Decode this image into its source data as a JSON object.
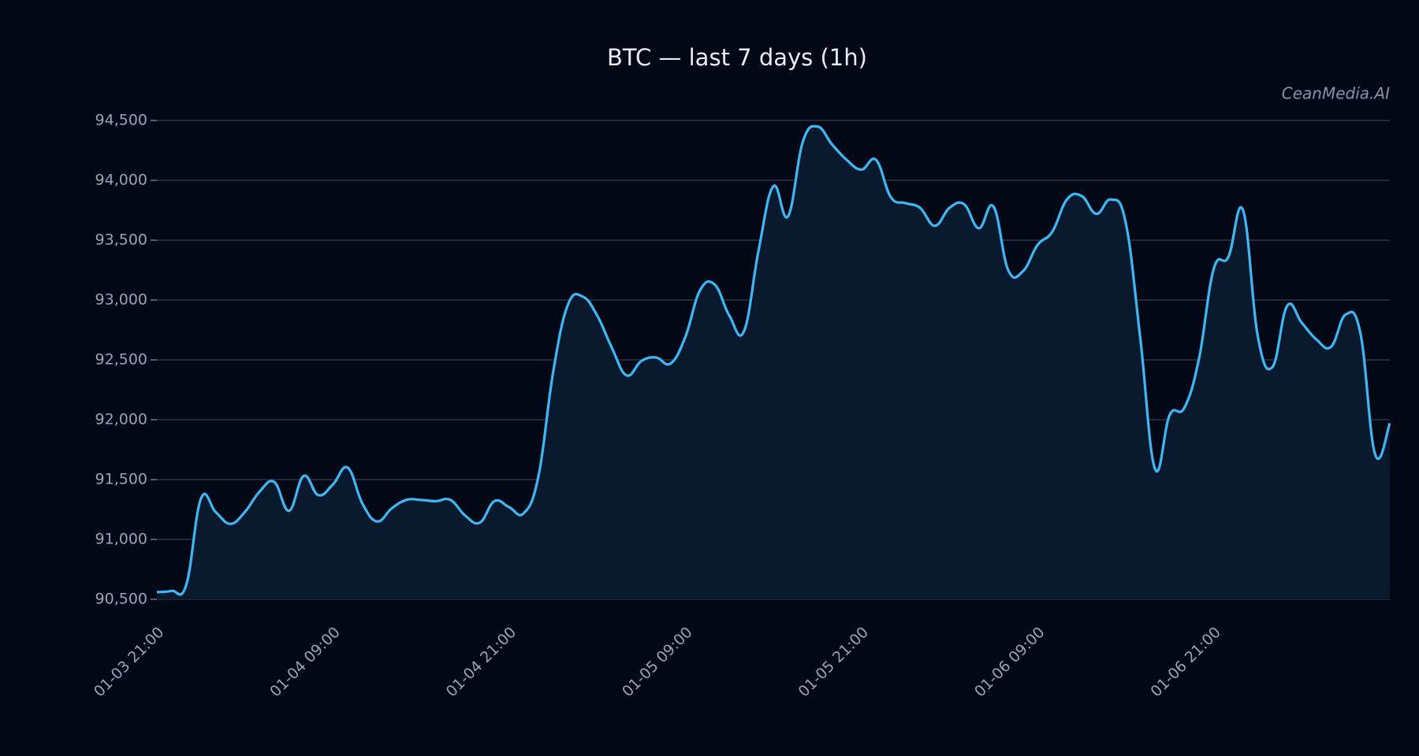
{
  "chart_data": {
    "type": "line",
    "title": "BTC — last 7 days (1h)",
    "watermark": "CeanMedia.AI",
    "categories": [
      "01-03 21:00",
      null,
      null,
      null,
      null,
      null,
      null,
      null,
      null,
      null,
      null,
      null,
      "01-04 09:00",
      null,
      null,
      null,
      null,
      null,
      null,
      null,
      null,
      null,
      null,
      null,
      "01-04 21:00",
      null,
      null,
      null,
      null,
      null,
      null,
      null,
      null,
      null,
      null,
      null,
      "01-05 09:00",
      null,
      null,
      null,
      null,
      null,
      null,
      null,
      null,
      null,
      null,
      null,
      "01-05 21:00",
      null,
      null,
      null,
      null,
      null,
      null,
      null,
      null,
      null,
      null,
      null,
      "01-06 09:00",
      null,
      null,
      null,
      null,
      null,
      null,
      null,
      null,
      null,
      null,
      null,
      "01-06 21:00",
      null,
      null,
      null,
      null,
      null,
      null,
      null,
      null,
      null,
      null,
      null,
      null
    ],
    "series": [
      {
        "name": "BTC",
        "color": "#3db8f5",
        "values": [
          90560,
          90570,
          90620,
          91340,
          91230,
          91130,
          91230,
          91400,
          91480,
          91240,
          91530,
          91370,
          91460,
          91600,
          91300,
          91150,
          91260,
          91330,
          91330,
          91320,
          91330,
          91200,
          91140,
          91320,
          91270,
          91220,
          91530,
          92400,
          92960,
          93030,
          92870,
          92600,
          92370,
          92490,
          92520,
          92470,
          92690,
          93080,
          93130,
          92870,
          92740,
          93420,
          93950,
          93700,
          94320,
          94450,
          94300,
          94170,
          94090,
          94170,
          93860,
          93810,
          93770,
          93620,
          93770,
          93800,
          93600,
          93780,
          93250,
          93240,
          93460,
          93570,
          93840,
          93870,
          93720,
          93840,
          93650,
          92680,
          91590,
          92040,
          92100,
          92510,
          93260,
          93360,
          93750,
          92700,
          92440,
          92950,
          92810,
          92670,
          92610,
          92880,
          92720,
          91710,
          91970
        ]
      }
    ],
    "area_color": "#0a1a2e",
    "ylim": [
      90500,
      94500
    ],
    "yticks": [
      {
        "value": 90500,
        "label": "90,500"
      },
      {
        "value": 91000,
        "label": "91,000"
      },
      {
        "value": 91500,
        "label": "91,500"
      },
      {
        "value": 92000,
        "label": "92,000"
      },
      {
        "value": 92500,
        "label": "92,500"
      },
      {
        "value": 93000,
        "label": "93,000"
      },
      {
        "value": 93500,
        "label": "93,500"
      },
      {
        "value": 94000,
        "label": "94,000"
      },
      {
        "value": 94500,
        "label": "94,500"
      }
    ],
    "grid": true
  }
}
